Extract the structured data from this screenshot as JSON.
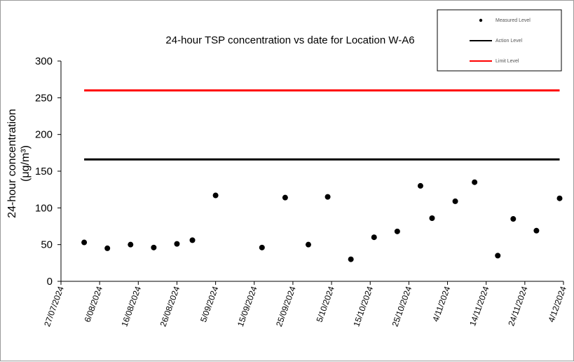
{
  "chart_data": {
    "type": "scatter",
    "title": "24-hour TSP concentration vs date for Location W-A6",
    "ylabel_line1": "24-hour concentration",
    "ylabel_line2": "(μg/m³)",
    "xlabel": "",
    "ylim": [
      0,
      300
    ],
    "yticks": [
      "0",
      "50",
      "100",
      "150",
      "200",
      "250",
      "300"
    ],
    "xticks": [
      "27/07/2024",
      "6/08/2024",
      "16/08/2024",
      "26/08/2024",
      "5/09/2024",
      "15/09/2024",
      "25/09/2024",
      "5/10/2024",
      "15/10/2024",
      "25/10/2024",
      "4/11/2024",
      "14/11/2024",
      "24/11/2024",
      "4/12/2024"
    ],
    "grid": false,
    "legend_position": "top-right",
    "series": [
      {
        "name": "Measured Level",
        "color": "#000000",
        "marker": "circle",
        "x": [
          "2/08/2024",
          "8/08/2024",
          "14/08/2024",
          "20/08/2024",
          "26/08/2024",
          "30/08/2024",
          "5/09/2024",
          "17/09/2024",
          "23/09/2024",
          "29/09/2024",
          "4/10/2024",
          "10/10/2024",
          "16/10/2024",
          "22/10/2024",
          "28/10/2024",
          "31/10/2024",
          "6/11/2024",
          "11/11/2024",
          "17/11/2024",
          "21/11/2024",
          "27/11/2024",
          "3/12/2024"
        ],
        "y": [
          53,
          45,
          50,
          46,
          51,
          56,
          117,
          46,
          114,
          50,
          115,
          30,
          60,
          68,
          130,
          86,
          109,
          135,
          35,
          85,
          69,
          113
        ]
      },
      {
        "name": "Action Level",
        "color": "#000000",
        "marker": "line",
        "x": [
          "2/08/2024",
          "3/12/2024"
        ],
        "y": [
          166,
          166
        ]
      },
      {
        "name": "Limit Level",
        "color": "#ff0000",
        "marker": "line",
        "x": [
          "2/08/2024",
          "3/12/2024"
        ],
        "y": [
          260,
          260
        ]
      }
    ]
  }
}
